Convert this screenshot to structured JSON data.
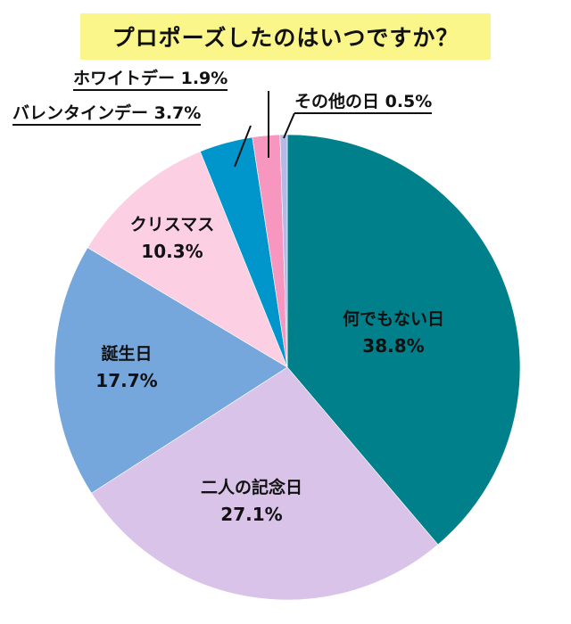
{
  "title": "プロポーズしたのはいつですか？",
  "colors": {
    "title_bg": "#fbf68a",
    "ordinary_day": "#00808a",
    "anniversary": "#d9c3e8",
    "birthday": "#75a7dd",
    "christmas": "#fccfe2",
    "valentines": "#0096cc",
    "white_day": "#f796be",
    "other": "#b6b8e8"
  },
  "slices": [
    {
      "name": "何でもない日",
      "pct_label": "38.8%"
    },
    {
      "name": "二人の記念日",
      "pct_label": "27.1%"
    },
    {
      "name": "誕生日",
      "pct_label": "17.7%"
    },
    {
      "name": "クリスマス",
      "pct_label": "10.3%"
    }
  ],
  "callouts": {
    "white_day": "ホワイトデー 1.9%",
    "valentines": "バレンタインデー 3.7%",
    "other": "その他の日 0.5%"
  },
  "chart_data": {
    "type": "pie",
    "title": "プロポーズしたのはいつですか？",
    "start_angle": "12 o'clock",
    "direction": "clockwise",
    "categories": [
      "何でもない日",
      "二人の記念日",
      "誕生日",
      "クリスマス",
      "バレンタインデー",
      "ホワイトデー",
      "その他の日"
    ],
    "values": [
      38.8,
      27.1,
      17.7,
      10.3,
      3.7,
      1.9,
      0.5
    ],
    "unit": "%",
    "colors": [
      "#00808a",
      "#d9c3e8",
      "#75a7dd",
      "#fccfe2",
      "#0096cc",
      "#f796be",
      "#b6b8e8"
    ],
    "legend": "none (direct labels; small slices use underlined callouts with leader lines)"
  }
}
